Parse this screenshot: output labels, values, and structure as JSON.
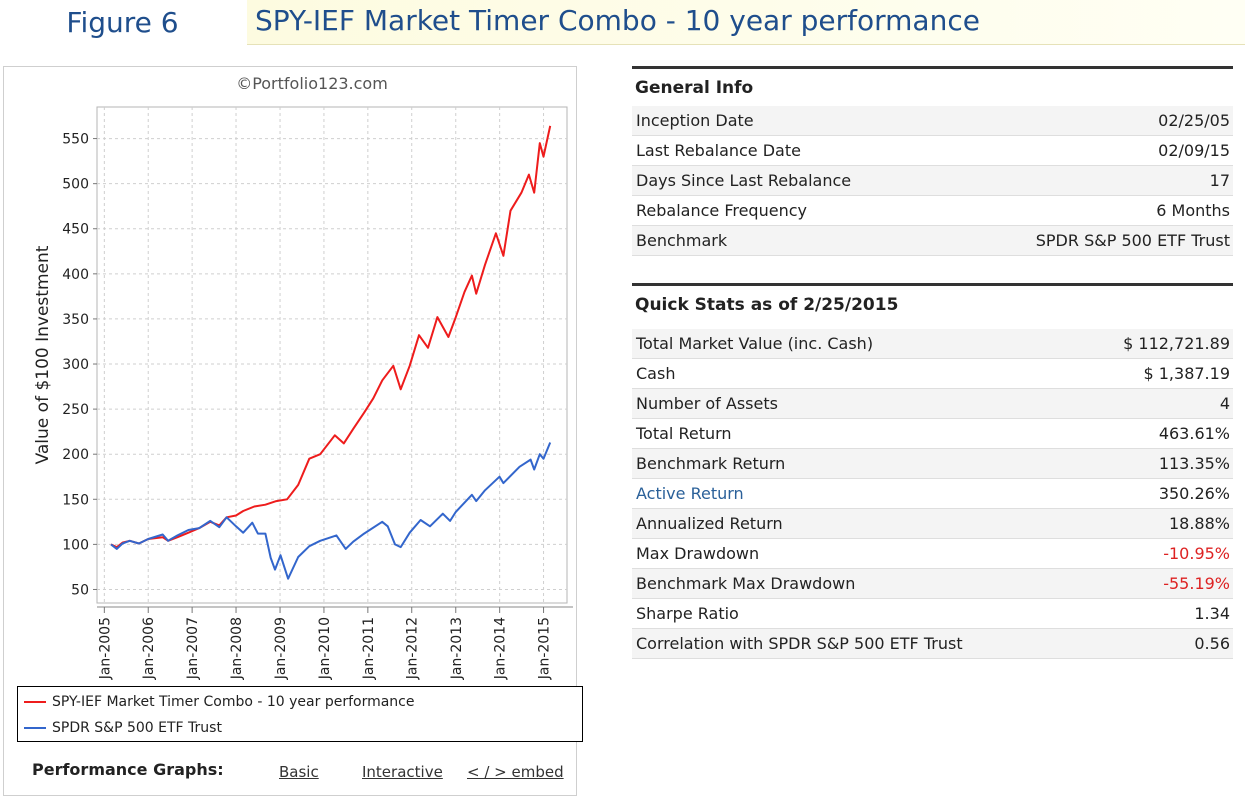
{
  "header": {
    "figure_label": "Figure 6",
    "title": "SPY-IEF Market Timer Combo - 10 year performance"
  },
  "chart_data": {
    "type": "line",
    "title": "",
    "watermark": "©Portfolio123.com",
    "xlabel": "",
    "ylabel": "Value of $100 Investment",
    "x_ticks": [
      "Jan-2005",
      "Jan-2006",
      "Jan-2007",
      "Jan-2008",
      "Jan-2009",
      "Jan-2010",
      "Jan-2011",
      "Jan-2012",
      "Jan-2013",
      "Jan-2014",
      "Jan-2015"
    ],
    "y_ticks": [
      50,
      100,
      150,
      200,
      250,
      300,
      350,
      400,
      450,
      500,
      550
    ],
    "ylim": [
      35,
      585
    ],
    "xlim": [
      "2004-11-01",
      "2015-07-15"
    ],
    "grid": true,
    "legend_position": "bottom",
    "series": [
      {
        "name": "SPY-IEF Market Timer Combo - 10 year performance",
        "color": "#ee1c1c",
        "points": [
          [
            "2005-02-25",
            100
          ],
          [
            "2005-04-15",
            97
          ],
          [
            "2005-06-01",
            102
          ],
          [
            "2005-08-01",
            104
          ],
          [
            "2005-10-15",
            101
          ],
          [
            "2006-01-01",
            106
          ],
          [
            "2006-05-01",
            108
          ],
          [
            "2006-06-15",
            104
          ],
          [
            "2006-09-01",
            108
          ],
          [
            "2006-12-01",
            113
          ],
          [
            "2007-03-01",
            118
          ],
          [
            "2007-06-01",
            125
          ],
          [
            "2007-08-15",
            121
          ],
          [
            "2007-10-15",
            130
          ],
          [
            "2008-01-01",
            132
          ],
          [
            "2008-03-01",
            137
          ],
          [
            "2008-06-01",
            142
          ],
          [
            "2008-09-01",
            144
          ],
          [
            "2008-12-01",
            148
          ],
          [
            "2009-03-01",
            150
          ],
          [
            "2009-06-01",
            166
          ],
          [
            "2009-09-01",
            195
          ],
          [
            "2009-12-01",
            200
          ],
          [
            "2010-04-01",
            221
          ],
          [
            "2010-06-15",
            212
          ],
          [
            "2010-09-01",
            228
          ],
          [
            "2010-12-01",
            246
          ],
          [
            "2011-02-15",
            262
          ],
          [
            "2011-05-01",
            282
          ],
          [
            "2011-08-01",
            298
          ],
          [
            "2011-10-01",
            272
          ],
          [
            "2011-12-15",
            298
          ],
          [
            "2012-03-01",
            332
          ],
          [
            "2012-05-15",
            318
          ],
          [
            "2012-08-01",
            352
          ],
          [
            "2012-11-01",
            330
          ],
          [
            "2013-01-01",
            352
          ],
          [
            "2013-03-15",
            380
          ],
          [
            "2013-05-15",
            398
          ],
          [
            "2013-06-20",
            378
          ],
          [
            "2013-09-01",
            410
          ],
          [
            "2013-12-01",
            445
          ],
          [
            "2014-02-01",
            420
          ],
          [
            "2014-04-01",
            470
          ],
          [
            "2014-07-01",
            490
          ],
          [
            "2014-09-01",
            510
          ],
          [
            "2014-10-15",
            490
          ],
          [
            "2014-12-01",
            545
          ],
          [
            "2015-01-01",
            530
          ],
          [
            "2015-02-25",
            564
          ]
        ]
      },
      {
        "name": "SPDR S&P 500 ETF Trust",
        "color": "#3366cc",
        "points": [
          [
            "2005-02-25",
            100
          ],
          [
            "2005-04-15",
            95
          ],
          [
            "2005-06-01",
            101
          ],
          [
            "2005-08-01",
            104
          ],
          [
            "2005-10-15",
            101
          ],
          [
            "2006-01-01",
            106
          ],
          [
            "2006-05-01",
            111
          ],
          [
            "2006-06-15",
            104
          ],
          [
            "2006-09-01",
            110
          ],
          [
            "2006-12-01",
            116
          ],
          [
            "2007-03-01",
            118
          ],
          [
            "2007-06-01",
            126
          ],
          [
            "2007-08-15",
            119
          ],
          [
            "2007-10-15",
            130
          ],
          [
            "2008-01-01",
            120
          ],
          [
            "2008-03-01",
            113
          ],
          [
            "2008-05-15",
            124
          ],
          [
            "2008-07-01",
            112
          ],
          [
            "2008-09-01",
            112
          ],
          [
            "2008-10-15",
            85
          ],
          [
            "2008-11-20",
            72
          ],
          [
            "2009-01-05",
            88
          ],
          [
            "2009-03-09",
            62
          ],
          [
            "2009-06-01",
            86
          ],
          [
            "2009-09-01",
            98
          ],
          [
            "2009-12-01",
            104
          ],
          [
            "2010-04-15",
            110
          ],
          [
            "2010-07-01",
            95
          ],
          [
            "2010-09-01",
            103
          ],
          [
            "2010-12-01",
            112
          ],
          [
            "2011-04-30",
            125
          ],
          [
            "2011-06-15",
            120
          ],
          [
            "2011-08-15",
            100
          ],
          [
            "2011-10-01",
            97
          ],
          [
            "2011-12-15",
            113
          ],
          [
            "2012-03-15",
            127
          ],
          [
            "2012-06-01",
            120
          ],
          [
            "2012-09-15",
            134
          ],
          [
            "2012-11-15",
            126
          ],
          [
            "2013-01-01",
            136
          ],
          [
            "2013-05-15",
            155
          ],
          [
            "2013-06-20",
            148
          ],
          [
            "2013-09-01",
            160
          ],
          [
            "2013-12-31",
            175
          ],
          [
            "2014-02-01",
            168
          ],
          [
            "2014-06-15",
            186
          ],
          [
            "2014-09-15",
            194
          ],
          [
            "2014-10-15",
            183
          ],
          [
            "2014-12-01",
            200
          ],
          [
            "2015-01-01",
            195
          ],
          [
            "2015-02-25",
            213
          ]
        ]
      }
    ]
  },
  "graph_links": {
    "label": "Performance Graphs:",
    "basic": "Basic",
    "interactive": "Interactive",
    "embed": "< / > embed"
  },
  "general_info": {
    "heading": "General Info",
    "rows": [
      {
        "label": "Inception Date",
        "value": "02/25/05"
      },
      {
        "label": "Last Rebalance Date",
        "value": "02/09/15"
      },
      {
        "label": "Days Since Last Rebalance",
        "value": "17"
      },
      {
        "label": "Rebalance Frequency",
        "value": "6 Months"
      },
      {
        "label": "Benchmark",
        "value": "SPDR S&P 500 ETF Trust"
      }
    ]
  },
  "quick_stats": {
    "heading": "Quick Stats as of 2/25/2015",
    "rows": [
      {
        "label": "Total Market Value (inc. Cash)",
        "value": "$ 112,721.89"
      },
      {
        "label": "Cash",
        "value": "$ 1,387.19"
      },
      {
        "label": "Number of Assets",
        "value": "4"
      },
      {
        "label": "Total Return",
        "value": "463.61%"
      },
      {
        "label": "Benchmark Return",
        "value": "113.35%"
      },
      {
        "label": "Active Return",
        "value": "350.26%"
      },
      {
        "label": "Annualized Return",
        "value": "18.88%"
      },
      {
        "label": "Max Drawdown",
        "value": "-10.95%"
      },
      {
        "label": "Benchmark Max Drawdown",
        "value": "-55.19%"
      },
      {
        "label": "Sharpe Ratio",
        "value": "1.34"
      },
      {
        "label": "Correlation with SPDR S&P 500 ETF Trust",
        "value": "0.56"
      }
    ]
  }
}
